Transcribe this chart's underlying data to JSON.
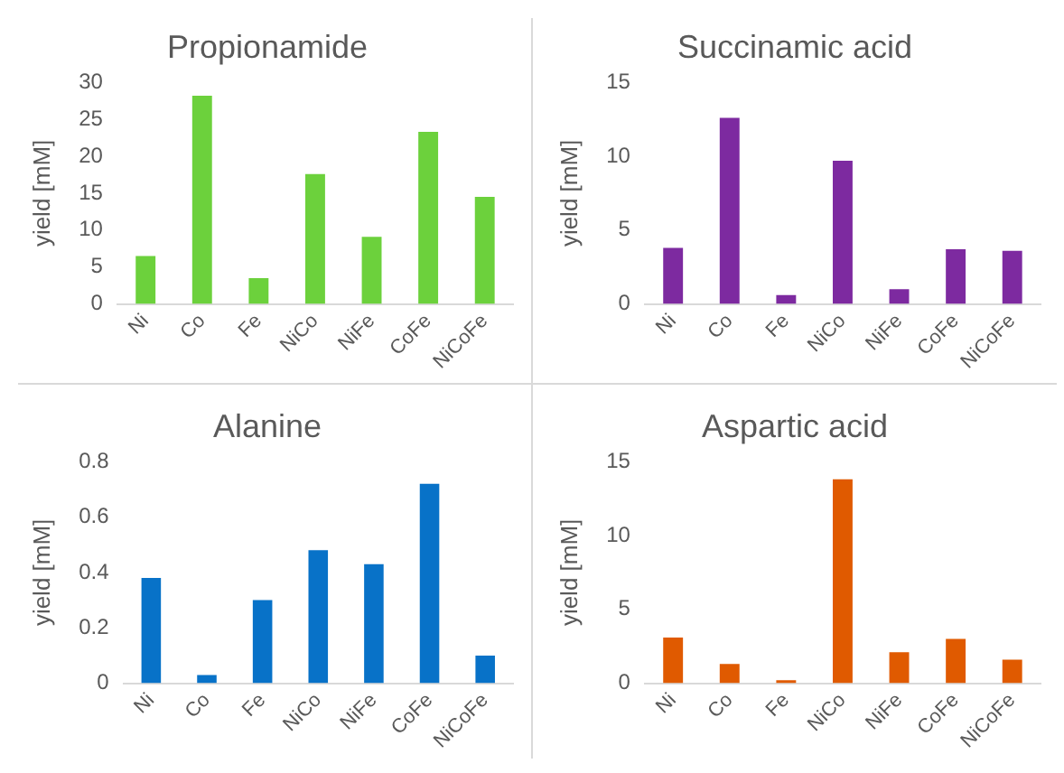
{
  "chart_data": [
    {
      "type": "bar",
      "title": "Propionamide",
      "ylabel": "yield [mM]",
      "categories": [
        "Ni",
        "Co",
        "Fe",
        "NiCo",
        "NiFe",
        "CoFe",
        "NiCoFe"
      ],
      "values": [
        6.5,
        28.2,
        3.5,
        17.6,
        9.1,
        23.3,
        14.5
      ],
      "color": "#6cd13c",
      "ylim": [
        0,
        30
      ],
      "yticks": [
        0,
        5,
        10,
        15,
        20,
        25,
        30
      ],
      "grid": false,
      "legend": false
    },
    {
      "type": "bar",
      "title": "Succinamic acid",
      "ylabel": "yield [mM]",
      "categories": [
        "Ni",
        "Co",
        "Fe",
        "NiCo",
        "NiFe",
        "CoFe",
        "NiCoFe"
      ],
      "values": [
        3.8,
        12.6,
        0.6,
        9.7,
        1.0,
        3.7,
        3.6
      ],
      "color": "#7d2aa0",
      "ylim": [
        0,
        15
      ],
      "yticks": [
        0,
        5,
        10,
        15
      ],
      "grid": false,
      "legend": false
    },
    {
      "type": "bar",
      "title": "Alanine",
      "ylabel": "yield [mM]",
      "categories": [
        "Ni",
        "Co",
        "Fe",
        "NiCo",
        "NiFe",
        "CoFe",
        "NiCoFe"
      ],
      "values": [
        0.38,
        0.03,
        0.3,
        0.48,
        0.43,
        0.72,
        0.1
      ],
      "color": "#0872c8",
      "ylim": [
        0,
        0.8
      ],
      "yticks": [
        0,
        0.2,
        0.4,
        0.6,
        0.8
      ],
      "grid": false,
      "legend": false
    },
    {
      "type": "bar",
      "title": "Aspartic acid",
      "ylabel": "yield [mM]",
      "categories": [
        "Ni",
        "Co",
        "Fe",
        "NiCo",
        "NiFe",
        "CoFe",
        "NiCoFe"
      ],
      "values": [
        3.1,
        1.3,
        0.2,
        13.8,
        2.1,
        3.0,
        1.6
      ],
      "color": "#e05a00",
      "ylim": [
        0,
        15
      ],
      "yticks": [
        0,
        5,
        10,
        15
      ],
      "grid": false,
      "legend": false
    }
  ]
}
